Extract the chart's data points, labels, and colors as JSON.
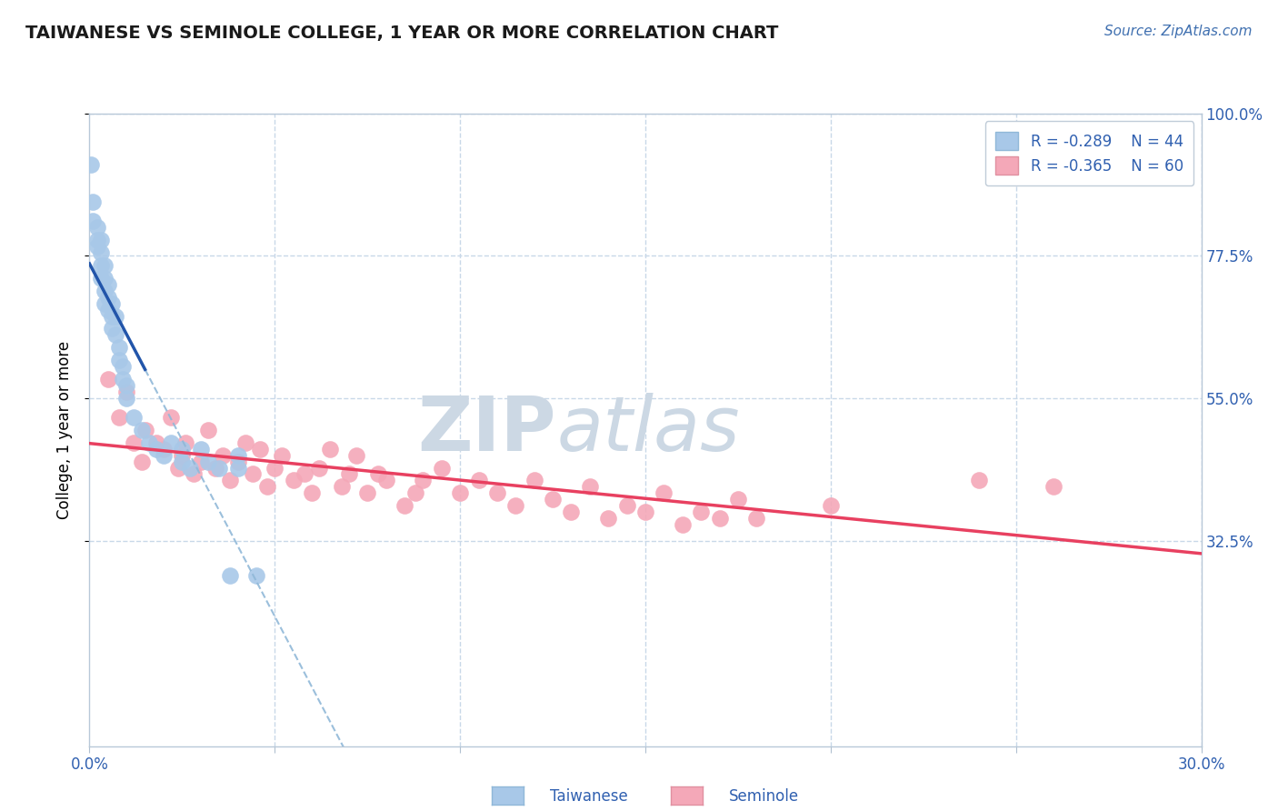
{
  "title": "TAIWANESE VS SEMINOLE COLLEGE, 1 YEAR OR MORE CORRELATION CHART",
  "source_text": "Source: ZipAtlas.com",
  "ylabel": "College, 1 year or more",
  "xmin": 0.0,
  "xmax": 0.3,
  "ymin": 0.0,
  "ymax": 1.0,
  "taiwanese_color": "#a8c8e8",
  "taiwanese_edge_color": "#90b8d8",
  "seminole_color": "#f4a8b8",
  "seminole_edge_color": "#e090a0",
  "taiwanese_line_color": "#2255aa",
  "seminole_line_color": "#e84060",
  "taiwanese_dash_color": "#90b8d8",
  "background_color": "#ffffff",
  "grid_color": "#c8d8e8",
  "watermark_color": "#ccd8e4",
  "legend_r1": "R = -0.289",
  "legend_n1": "N = 44",
  "legend_r2": "R = -0.365",
  "legend_n2": "N = 60",
  "taiwanese_scatter": [
    [
      0.0005,
      0.92
    ],
    [
      0.001,
      0.86
    ],
    [
      0.001,
      0.83
    ],
    [
      0.002,
      0.82
    ],
    [
      0.002,
      0.8
    ],
    [
      0.002,
      0.79
    ],
    [
      0.003,
      0.8
    ],
    [
      0.003,
      0.78
    ],
    [
      0.003,
      0.76
    ],
    [
      0.003,
      0.74
    ],
    [
      0.004,
      0.76
    ],
    [
      0.004,
      0.74
    ],
    [
      0.004,
      0.72
    ],
    [
      0.004,
      0.7
    ],
    [
      0.005,
      0.73
    ],
    [
      0.005,
      0.71
    ],
    [
      0.005,
      0.69
    ],
    [
      0.006,
      0.7
    ],
    [
      0.006,
      0.68
    ],
    [
      0.006,
      0.66
    ],
    [
      0.007,
      0.68
    ],
    [
      0.007,
      0.65
    ],
    [
      0.008,
      0.63
    ],
    [
      0.008,
      0.61
    ],
    [
      0.009,
      0.6
    ],
    [
      0.009,
      0.58
    ],
    [
      0.01,
      0.57
    ],
    [
      0.01,
      0.55
    ],
    [
      0.012,
      0.52
    ],
    [
      0.014,
      0.5
    ],
    [
      0.016,
      0.48
    ],
    [
      0.018,
      0.47
    ],
    [
      0.02,
      0.46
    ],
    [
      0.022,
      0.48
    ],
    [
      0.025,
      0.47
    ],
    [
      0.025,
      0.45
    ],
    [
      0.027,
      0.44
    ],
    [
      0.03,
      0.47
    ],
    [
      0.032,
      0.45
    ],
    [
      0.035,
      0.44
    ],
    [
      0.038,
      0.27
    ],
    [
      0.04,
      0.46
    ],
    [
      0.04,
      0.44
    ],
    [
      0.045,
      0.27
    ]
  ],
  "seminole_scatter": [
    [
      0.005,
      0.58
    ],
    [
      0.008,
      0.52
    ],
    [
      0.01,
      0.56
    ],
    [
      0.012,
      0.48
    ],
    [
      0.014,
      0.45
    ],
    [
      0.015,
      0.5
    ],
    [
      0.018,
      0.48
    ],
    [
      0.02,
      0.47
    ],
    [
      0.022,
      0.52
    ],
    [
      0.024,
      0.44
    ],
    [
      0.025,
      0.46
    ],
    [
      0.026,
      0.48
    ],
    [
      0.028,
      0.43
    ],
    [
      0.03,
      0.45
    ],
    [
      0.032,
      0.5
    ],
    [
      0.034,
      0.44
    ],
    [
      0.036,
      0.46
    ],
    [
      0.038,
      0.42
    ],
    [
      0.04,
      0.45
    ],
    [
      0.042,
      0.48
    ],
    [
      0.044,
      0.43
    ],
    [
      0.046,
      0.47
    ],
    [
      0.048,
      0.41
    ],
    [
      0.05,
      0.44
    ],
    [
      0.052,
      0.46
    ],
    [
      0.055,
      0.42
    ],
    [
      0.058,
      0.43
    ],
    [
      0.06,
      0.4
    ],
    [
      0.062,
      0.44
    ],
    [
      0.065,
      0.47
    ],
    [
      0.068,
      0.41
    ],
    [
      0.07,
      0.43
    ],
    [
      0.072,
      0.46
    ],
    [
      0.075,
      0.4
    ],
    [
      0.078,
      0.43
    ],
    [
      0.08,
      0.42
    ],
    [
      0.085,
      0.38
    ],
    [
      0.088,
      0.4
    ],
    [
      0.09,
      0.42
    ],
    [
      0.095,
      0.44
    ],
    [
      0.1,
      0.4
    ],
    [
      0.105,
      0.42
    ],
    [
      0.11,
      0.4
    ],
    [
      0.115,
      0.38
    ],
    [
      0.12,
      0.42
    ],
    [
      0.125,
      0.39
    ],
    [
      0.13,
      0.37
    ],
    [
      0.135,
      0.41
    ],
    [
      0.14,
      0.36
    ],
    [
      0.145,
      0.38
    ],
    [
      0.15,
      0.37
    ],
    [
      0.155,
      0.4
    ],
    [
      0.16,
      0.35
    ],
    [
      0.165,
      0.37
    ],
    [
      0.17,
      0.36
    ],
    [
      0.175,
      0.39
    ],
    [
      0.18,
      0.36
    ],
    [
      0.2,
      0.38
    ],
    [
      0.24,
      0.42
    ],
    [
      0.26,
      0.41
    ]
  ]
}
